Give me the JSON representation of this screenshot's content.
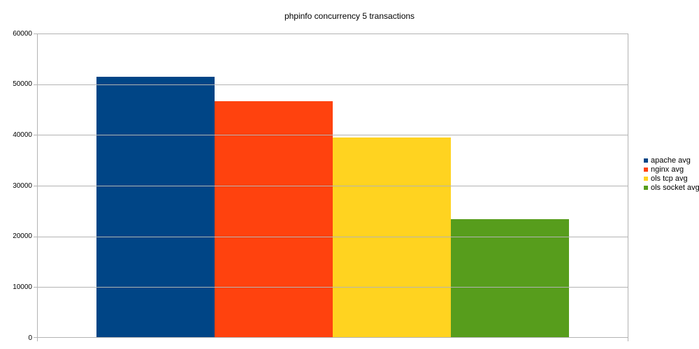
{
  "title": "phpinfo concurrency 5 transactions",
  "chart_data": {
    "type": "bar",
    "title": "phpinfo concurrency 5 transactions",
    "categories": [
      "apache avg",
      "nginx avg",
      "ols tcp avg",
      "ols socket avg"
    ],
    "series": [
      {
        "name": "apache avg",
        "value": 51300,
        "color": "#004586"
      },
      {
        "name": "nginx avg",
        "value": 46500,
        "color": "#FF420E"
      },
      {
        "name": "ols tcp avg",
        "value": 39300,
        "color": "#FFD320"
      },
      {
        "name": "ols socket avg",
        "value": 23300,
        "color": "#579D1C"
      }
    ],
    "xlabel": "",
    "ylabel": "",
    "ylim": [
      0,
      60000
    ],
    "ytick_step": 10000,
    "yticks": [
      0,
      10000,
      20000,
      30000,
      40000,
      50000,
      60000
    ],
    "grid": true,
    "legend_position": "right"
  },
  "colors": {
    "background": "#ffffff",
    "gridline": "#b3b3b3",
    "axis": "#b3b3b3",
    "text": "#000000"
  }
}
